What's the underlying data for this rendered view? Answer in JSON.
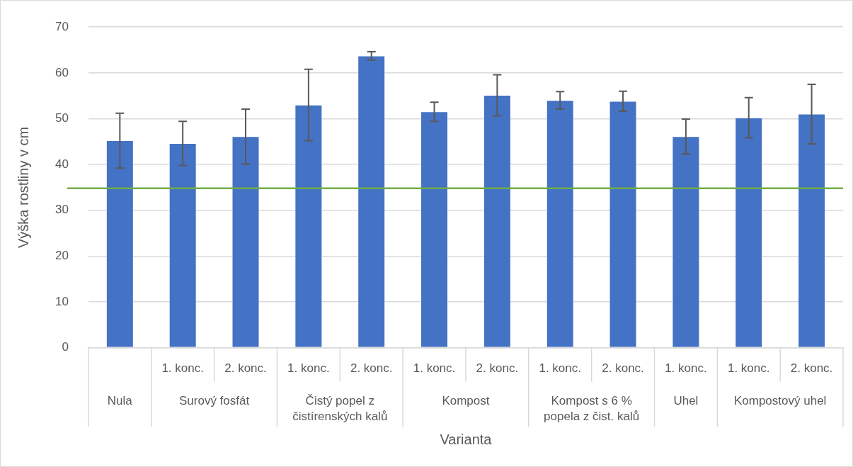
{
  "chart_data": {
    "type": "bar",
    "xlabel": "Varianta",
    "ylabel": "Výška rostliny v cm",
    "categories": [
      null,
      "1. konc.",
      "2. konc.",
      "1. konc.",
      "2. konc.",
      "1. konc.",
      "2. konc.",
      "1. konc.",
      "2. konc.",
      "1. konc.",
      "1. konc.",
      "2. konc."
    ],
    "values": [
      45.2,
      44.6,
      46.1,
      53.0,
      63.7,
      51.5,
      55.1,
      54.0,
      53.8,
      46.1,
      50.2,
      51.0
    ],
    "errors": [
      6.0,
      4.8,
      6.0,
      7.8,
      0.9,
      2.1,
      4.5,
      1.9,
      2.2,
      3.8,
      4.4,
      6.5
    ],
    "color": "#4472c4",
    "ylim": [
      0,
      70
    ],
    "yticks": [
      0,
      10,
      20,
      30,
      40,
      50,
      60,
      70
    ],
    "grid": "y",
    "legend": false,
    "ref_lines": [
      {
        "axis": "y",
        "value": 34.8,
        "color": "#70ad47"
      }
    ],
    "annotations": [
      "Nula",
      "Surový fosfát",
      "Čistý popel z čistírenských kalů",
      "Kompost",
      "Kompost s 6 % popela z čist. kalů",
      "Uhel",
      "Kompostový uhel"
    ]
  }
}
